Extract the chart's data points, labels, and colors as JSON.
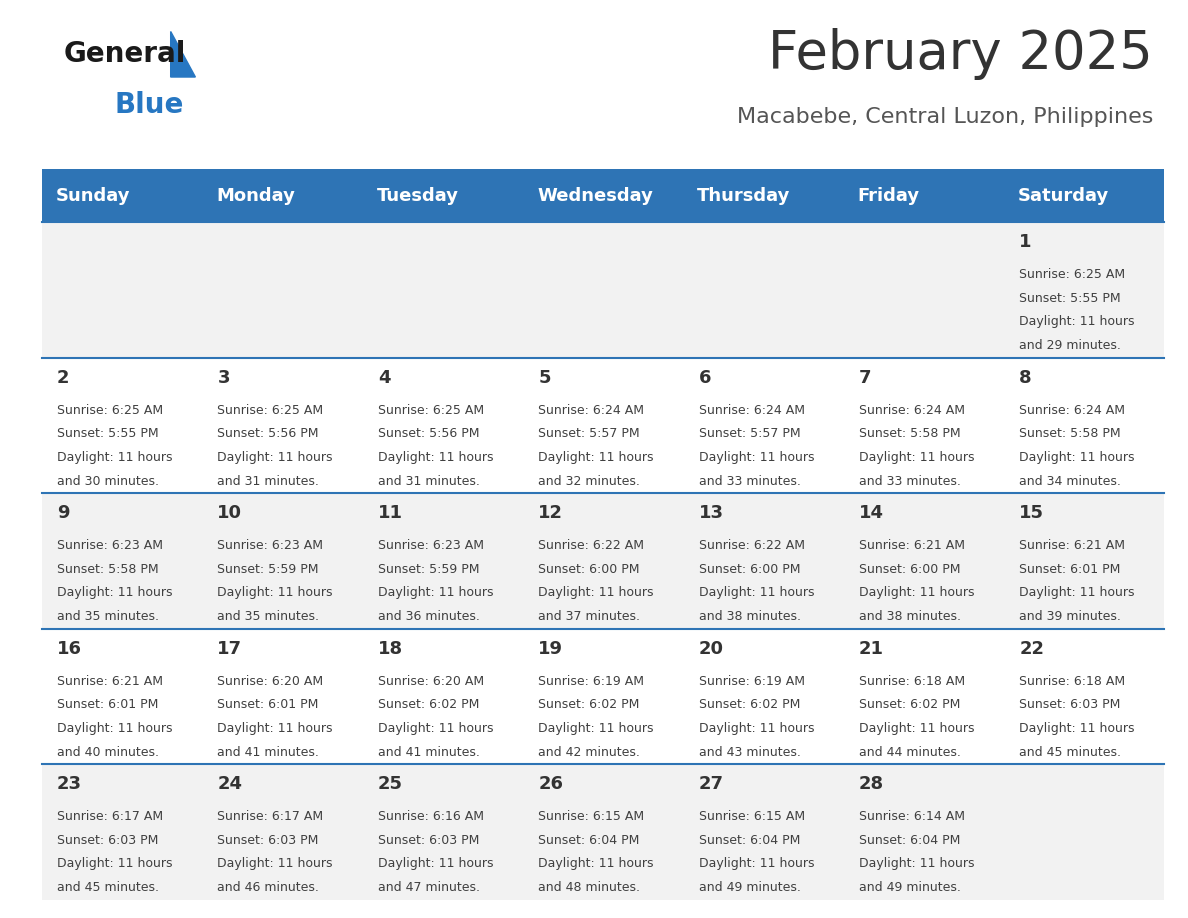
{
  "title": "February 2025",
  "subtitle": "Macabebe, Central Luzon, Philippines",
  "header_bg": "#2E74B5",
  "header_text_color": "#FFFFFF",
  "day_names": [
    "Sunday",
    "Monday",
    "Tuesday",
    "Wednesday",
    "Thursday",
    "Friday",
    "Saturday"
  ],
  "row0_bg": "#F2F2F2",
  "row1_bg": "#FFFFFF",
  "border_color": "#2E74B5",
  "cell_text_color": "#404040",
  "day_num_color": "#333333",
  "title_color": "#333333",
  "subtitle_color": "#555555",
  "logo_general_color": "#1a1a1a",
  "logo_blue_color": "#2777C2",
  "calendar_data": [
    [
      null,
      null,
      null,
      null,
      null,
      null,
      {
        "day": 1,
        "sunrise": "6:25 AM",
        "sunset": "5:55 PM",
        "daylight": "11 hours",
        "daylight2": "and 29 minutes."
      }
    ],
    [
      {
        "day": 2,
        "sunrise": "6:25 AM",
        "sunset": "5:55 PM",
        "daylight": "11 hours",
        "daylight2": "and 30 minutes."
      },
      {
        "day": 3,
        "sunrise": "6:25 AM",
        "sunset": "5:56 PM",
        "daylight": "11 hours",
        "daylight2": "and 31 minutes."
      },
      {
        "day": 4,
        "sunrise": "6:25 AM",
        "sunset": "5:56 PM",
        "daylight": "11 hours",
        "daylight2": "and 31 minutes."
      },
      {
        "day": 5,
        "sunrise": "6:24 AM",
        "sunset": "5:57 PM",
        "daylight": "11 hours",
        "daylight2": "and 32 minutes."
      },
      {
        "day": 6,
        "sunrise": "6:24 AM",
        "sunset": "5:57 PM",
        "daylight": "11 hours",
        "daylight2": "and 33 minutes."
      },
      {
        "day": 7,
        "sunrise": "6:24 AM",
        "sunset": "5:58 PM",
        "daylight": "11 hours",
        "daylight2": "and 33 minutes."
      },
      {
        "day": 8,
        "sunrise": "6:24 AM",
        "sunset": "5:58 PM",
        "daylight": "11 hours",
        "daylight2": "and 34 minutes."
      }
    ],
    [
      {
        "day": 9,
        "sunrise": "6:23 AM",
        "sunset": "5:58 PM",
        "daylight": "11 hours",
        "daylight2": "and 35 minutes."
      },
      {
        "day": 10,
        "sunrise": "6:23 AM",
        "sunset": "5:59 PM",
        "daylight": "11 hours",
        "daylight2": "and 35 minutes."
      },
      {
        "day": 11,
        "sunrise": "6:23 AM",
        "sunset": "5:59 PM",
        "daylight": "11 hours",
        "daylight2": "and 36 minutes."
      },
      {
        "day": 12,
        "sunrise": "6:22 AM",
        "sunset": "6:00 PM",
        "daylight": "11 hours",
        "daylight2": "and 37 minutes."
      },
      {
        "day": 13,
        "sunrise": "6:22 AM",
        "sunset": "6:00 PM",
        "daylight": "11 hours",
        "daylight2": "and 38 minutes."
      },
      {
        "day": 14,
        "sunrise": "6:21 AM",
        "sunset": "6:00 PM",
        "daylight": "11 hours",
        "daylight2": "and 38 minutes."
      },
      {
        "day": 15,
        "sunrise": "6:21 AM",
        "sunset": "6:01 PM",
        "daylight": "11 hours",
        "daylight2": "and 39 minutes."
      }
    ],
    [
      {
        "day": 16,
        "sunrise": "6:21 AM",
        "sunset": "6:01 PM",
        "daylight": "11 hours",
        "daylight2": "and 40 minutes."
      },
      {
        "day": 17,
        "sunrise": "6:20 AM",
        "sunset": "6:01 PM",
        "daylight": "11 hours",
        "daylight2": "and 41 minutes."
      },
      {
        "day": 18,
        "sunrise": "6:20 AM",
        "sunset": "6:02 PM",
        "daylight": "11 hours",
        "daylight2": "and 41 minutes."
      },
      {
        "day": 19,
        "sunrise": "6:19 AM",
        "sunset": "6:02 PM",
        "daylight": "11 hours",
        "daylight2": "and 42 minutes."
      },
      {
        "day": 20,
        "sunrise": "6:19 AM",
        "sunset": "6:02 PM",
        "daylight": "11 hours",
        "daylight2": "and 43 minutes."
      },
      {
        "day": 21,
        "sunrise": "6:18 AM",
        "sunset": "6:02 PM",
        "daylight": "11 hours",
        "daylight2": "and 44 minutes."
      },
      {
        "day": 22,
        "sunrise": "6:18 AM",
        "sunset": "6:03 PM",
        "daylight": "11 hours",
        "daylight2": "and 45 minutes."
      }
    ],
    [
      {
        "day": 23,
        "sunrise": "6:17 AM",
        "sunset": "6:03 PM",
        "daylight": "11 hours",
        "daylight2": "and 45 minutes."
      },
      {
        "day": 24,
        "sunrise": "6:17 AM",
        "sunset": "6:03 PM",
        "daylight": "11 hours",
        "daylight2": "and 46 minutes."
      },
      {
        "day": 25,
        "sunrise": "6:16 AM",
        "sunset": "6:03 PM",
        "daylight": "11 hours",
        "daylight2": "and 47 minutes."
      },
      {
        "day": 26,
        "sunrise": "6:15 AM",
        "sunset": "6:04 PM",
        "daylight": "11 hours",
        "daylight2": "and 48 minutes."
      },
      {
        "day": 27,
        "sunrise": "6:15 AM",
        "sunset": "6:04 PM",
        "daylight": "11 hours",
        "daylight2": "and 49 minutes."
      },
      {
        "day": 28,
        "sunrise": "6:14 AM",
        "sunset": "6:04 PM",
        "daylight": "11 hours",
        "daylight2": "and 49 minutes."
      },
      null
    ]
  ]
}
